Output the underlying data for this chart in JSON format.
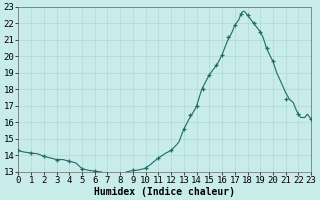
{
  "title": "",
  "xlabel": "Humidex (Indice chaleur)",
  "ylabel": "",
  "background_color": "#c8ece9",
  "grid_color": "#b0d8d4",
  "line_color": "#1e6b65",
  "marker_color": "#1e6b65",
  "xlim": [
    0,
    23
  ],
  "ylim": [
    13,
    23
  ],
  "yticks": [
    13,
    14,
    15,
    16,
    17,
    18,
    19,
    20,
    21,
    22,
    23
  ],
  "xticks": [
    0,
    1,
    2,
    3,
    4,
    5,
    6,
    7,
    8,
    9,
    10,
    11,
    12,
    13,
    14,
    15,
    16,
    17,
    18,
    19,
    20,
    21,
    22,
    23
  ],
  "x": [
    0,
    0.2,
    0.5,
    1.0,
    1.5,
    2.0,
    2.5,
    3.0,
    3.5,
    4.0,
    4.5,
    5.0,
    5.5,
    6.0,
    6.5,
    7.0,
    7.3,
    7.6,
    8.0,
    8.5,
    9.0,
    9.3,
    9.6,
    9.9,
    10.0,
    10.3,
    10.6,
    11.0,
    11.3,
    11.6,
    12.0,
    12.3,
    12.6,
    13.0,
    13.2,
    13.4,
    13.6,
    13.8,
    14.0,
    14.2,
    14.4,
    14.6,
    14.8,
    15.0,
    15.2,
    15.4,
    15.6,
    15.8,
    16.0,
    16.2,
    16.4,
    16.6,
    16.8,
    17.0,
    17.1,
    17.2,
    17.3,
    17.4,
    17.5,
    17.6,
    17.7,
    17.8,
    18.0,
    18.2,
    18.5,
    18.8,
    19.0,
    19.2,
    19.5,
    19.8,
    20.0,
    20.3,
    20.6,
    21.0,
    21.3,
    21.6,
    21.8,
    22.0,
    22.2,
    22.5,
    22.7,
    23.0
  ],
  "y": [
    14.3,
    14.25,
    14.2,
    14.15,
    14.1,
    13.95,
    13.85,
    13.75,
    13.75,
    13.65,
    13.55,
    13.2,
    13.1,
    13.05,
    13.0,
    12.9,
    12.85,
    12.8,
    12.82,
    13.0,
    13.1,
    13.1,
    13.15,
    13.2,
    13.25,
    13.4,
    13.6,
    13.85,
    14.0,
    14.15,
    14.3,
    14.55,
    14.8,
    15.6,
    15.9,
    16.2,
    16.45,
    16.7,
    17.0,
    17.5,
    18.0,
    18.3,
    18.6,
    18.9,
    19.1,
    19.3,
    19.5,
    19.8,
    20.1,
    20.5,
    20.9,
    21.2,
    21.5,
    21.9,
    22.0,
    22.1,
    22.2,
    22.4,
    22.6,
    22.7,
    22.75,
    22.7,
    22.5,
    22.3,
    22.0,
    21.7,
    21.5,
    21.2,
    20.5,
    20.0,
    19.7,
    19.0,
    18.5,
    17.8,
    17.4,
    17.2,
    16.8,
    16.5,
    16.3,
    16.3,
    16.5,
    16.2
  ],
  "marker_x": [
    0,
    1,
    2,
    3,
    4,
    5,
    6,
    7,
    8,
    9,
    10,
    11,
    12,
    13,
    13.5,
    14,
    14.5,
    15,
    15.5,
    16,
    16.5,
    17,
    17.5,
    18,
    18.5,
    19,
    19.5,
    20,
    21,
    22,
    23
  ],
  "marker_y": [
    14.3,
    14.15,
    13.95,
    13.75,
    13.65,
    13.2,
    13.05,
    12.9,
    12.82,
    13.1,
    13.25,
    13.85,
    14.3,
    15.6,
    16.45,
    17.0,
    18.0,
    18.9,
    19.5,
    20.1,
    21.2,
    21.9,
    22.6,
    22.5,
    22.0,
    21.5,
    20.5,
    19.7,
    17.4,
    16.5,
    16.2
  ],
  "xlabel_fontsize": 7,
  "tick_fontsize": 6.5
}
